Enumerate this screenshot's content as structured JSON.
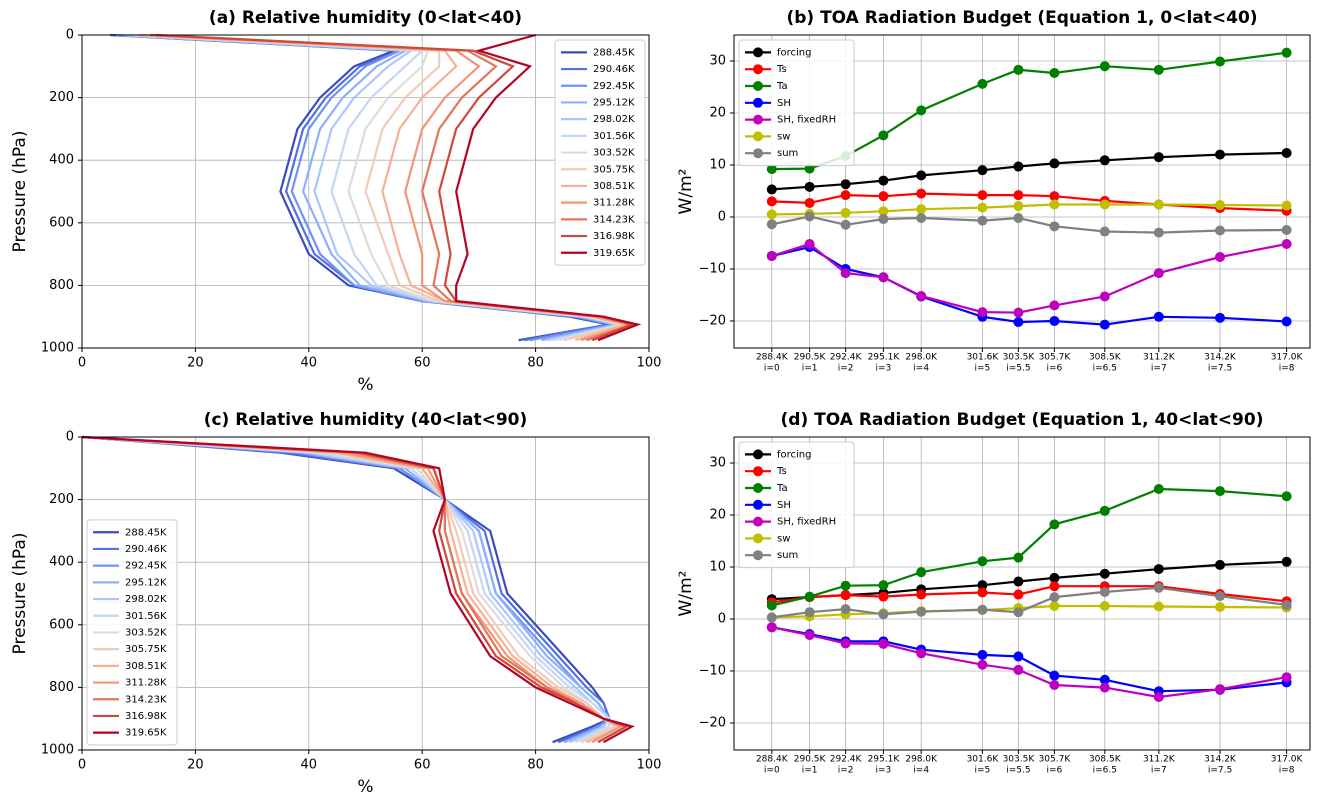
{
  "chart_data": [
    {
      "type": "profile",
      "title": "(a) Relative humidity (0<lat<40)",
      "xlabel": "%",
      "ylabel": "Pressure (hPa)",
      "y": [
        0,
        50,
        100,
        200,
        300,
        500,
        700,
        800,
        850,
        900,
        925,
        975
      ],
      "xlim": [
        0,
        100
      ],
      "xticks": [
        0,
        20,
        40,
        60,
        80,
        100
      ],
      "ylim": [
        1000,
        0
      ],
      "yticks": [
        0,
        200,
        400,
        600,
        800,
        1000
      ],
      "grid": true,
      "legend": "upper right",
      "series": [
        {
          "name": "288.45K",
          "color": "#3b4cc0",
          "values": [
            5,
            55,
            48,
            42,
            38,
            35,
            40,
            47,
            60,
            86,
            93,
            77
          ]
        },
        {
          "name": "290.46K",
          "color": "#5470de",
          "values": [
            5,
            56,
            49,
            43,
            39,
            36,
            41,
            48,
            60,
            87,
            93,
            78
          ]
        },
        {
          "name": "292.45K",
          "color": "#6f92f3",
          "values": [
            6,
            56,
            50,
            44,
            40,
            37,
            42,
            48,
            60,
            87,
            94,
            79
          ]
        },
        {
          "name": "295.12K",
          "color": "#8db0fe",
          "values": [
            6,
            57,
            52,
            46,
            42,
            39,
            44,
            49,
            61,
            88,
            94,
            81
          ]
        },
        {
          "name": "298.02K",
          "color": "#aac7fd",
          "values": [
            7,
            58,
            54,
            48,
            44,
            41,
            45,
            51,
            61,
            88,
            95,
            82
          ]
        },
        {
          "name": "301.56K",
          "color": "#c5d6f2",
          "values": [
            8,
            60,
            57,
            51,
            47,
            44,
            48,
            52,
            62,
            89,
            95,
            83
          ]
        },
        {
          "name": "303.52K",
          "color": "#dddcdc",
          "values": [
            9,
            61,
            60,
            54,
            50,
            47,
            51,
            54,
            62,
            89,
            95,
            84
          ]
        },
        {
          "name": "305.75K",
          "color": "#f2cbb7",
          "values": [
            10,
            63,
            63,
            57,
            53,
            50,
            54,
            56,
            63,
            90,
            96,
            85
          ]
        },
        {
          "name": "308.51K",
          "color": "#f7b093",
          "values": [
            10,
            64,
            66,
            60,
            56,
            53,
            56,
            58,
            64,
            90,
            96,
            87
          ]
        },
        {
          "name": "311.28K",
          "color": "#f39475",
          "values": [
            12,
            66,
            70,
            64,
            60,
            57,
            60,
            60,
            64,
            91,
            97,
            88
          ]
        },
        {
          "name": "314.23K",
          "color": "#e4745b",
          "values": [
            12,
            68,
            73,
            67,
            63,
            60,
            63,
            62,
            65,
            91,
            97,
            89
          ]
        },
        {
          "name": "316.98K",
          "color": "#cc4a3b",
          "values": [
            13,
            69,
            76,
            70,
            66,
            63,
            65,
            64,
            66,
            92,
            97,
            90
          ]
        },
        {
          "name": "319.65K",
          "color": "#b40426",
          "values": [
            80,
            70,
            79,
            73,
            69,
            66,
            68,
            66,
            66,
            92,
            98,
            91
          ]
        }
      ]
    },
    {
      "type": "line",
      "title": "(b) TOA Radiation Budget (Equation 1, 0<lat<40)",
      "ylabel": "W/m²",
      "x": [
        288.4,
        290.5,
        292.5,
        294.6,
        296.7,
        300.1,
        302.1,
        304.1,
        306.9,
        309.9,
        313.3,
        317.0
      ],
      "xlim": [
        286.3,
        318.3
      ],
      "xticks": [
        {
          "value": 288.4,
          "label": "288.4K",
          "index_label": "i=0"
        },
        {
          "value": 290.5,
          "label": "290.5K",
          "index_label": "i=1"
        },
        {
          "value": 292.5,
          "label": "292.4K",
          "index_label": "i=2"
        },
        {
          "value": 294.6,
          "label": "295.1K",
          "index_label": "i=3"
        },
        {
          "value": 296.7,
          "label": "298.0K",
          "index_label": "i=4"
        },
        {
          "value": 300.1,
          "label": "301.6K",
          "index_label": "i=5"
        },
        {
          "value": 302.1,
          "label": "303.5K",
          "index_label": "i=5.5"
        },
        {
          "value": 304.1,
          "label": "305.7K",
          "index_label": "i=6"
        },
        {
          "value": 306.9,
          "label": "308.5K",
          "index_label": "i=6.5"
        },
        {
          "value": 309.9,
          "label": "311.2K",
          "index_label": "i=7"
        },
        {
          "value": 313.3,
          "label": "314.2K",
          "index_label": "i=7.5"
        },
        {
          "value": 317.0,
          "label": "317.0K",
          "index_label": "i=8"
        }
      ],
      "ylim": [
        -25.2,
        35
      ],
      "yticks": [
        {
          "value": -20,
          "label": "−20"
        },
        {
          "value": -10,
          "label": "−10"
        },
        0,
        10,
        20,
        30
      ],
      "grid": true,
      "legend": "upper left",
      "series": [
        {
          "name": "forcing",
          "color": "#000000",
          "values": [
            5.3,
            5.8,
            6.3,
            7.0,
            8.0,
            9.0,
            9.7,
            10.3,
            10.9,
            11.5,
            12.0,
            12.3
          ]
        },
        {
          "name": "Ts",
          "color": "#ff0000",
          "values": [
            3.0,
            2.7,
            4.2,
            4.0,
            4.5,
            4.2,
            4.2,
            4.0,
            3.1,
            2.4,
            1.7,
            1.2
          ]
        },
        {
          "name": "Ta",
          "color": "#008000",
          "values": [
            9.2,
            9.3,
            11.7,
            15.7,
            20.5,
            25.6,
            28.3,
            27.7,
            29.0,
            28.3,
            29.9,
            31.6
          ]
        },
        {
          "name": "SH",
          "color": "#0000ff",
          "values": [
            -7.5,
            -5.8,
            -10.0,
            -11.6,
            -15.3,
            -19.2,
            -20.2,
            -20.0,
            -20.7,
            -19.2,
            -19.4,
            -20.1
          ]
        },
        {
          "name": "SH, fixedRH",
          "color": "#bf00bf",
          "values": [
            -7.5,
            -5.2,
            -10.8,
            -11.6,
            -15.2,
            -18.3,
            -18.4,
            -17.0,
            -15.3,
            -10.8,
            -7.7,
            -5.2
          ]
        },
        {
          "name": "sw",
          "color": "#bfbf00",
          "values": [
            0.5,
            0.6,
            0.8,
            1.1,
            1.5,
            1.8,
            2.1,
            2.4,
            2.4,
            2.4,
            2.3,
            2.2
          ]
        },
        {
          "name": "sum",
          "color": "#808080",
          "values": [
            -1.4,
            0.1,
            -1.5,
            -0.4,
            -0.2,
            -0.7,
            -0.2,
            -1.8,
            -2.8,
            -3.0,
            -2.6,
            -2.5
          ]
        }
      ]
    },
    {
      "type": "profile",
      "title": "(c) Relative humidity (40<lat<90)",
      "xlabel": "%",
      "ylabel": "Pressure (hPa)",
      "y": [
        0,
        50,
        100,
        200,
        300,
        500,
        700,
        800,
        850,
        900,
        925,
        975
      ],
      "xlim": [
        0,
        100
      ],
      "xticks": [
        0,
        20,
        40,
        60,
        80,
        100
      ],
      "ylim": [
        1000,
        0
      ],
      "yticks": [
        0,
        200,
        400,
        600,
        800,
        1000
      ],
      "grid": true,
      "legend": "lower left",
      "series": [
        {
          "name": "288.45K",
          "color": "#3b4cc0",
          "values": [
            0,
            35,
            55,
            64,
            72,
            75,
            85,
            90,
            92,
            93,
            90,
            83
          ]
        },
        {
          "name": "290.46K",
          "color": "#5470de",
          "values": [
            0,
            36,
            56,
            64,
            71,
            74,
            84,
            89,
            92,
            93,
            91,
            84
          ]
        },
        {
          "name": "292.45K",
          "color": "#6f92f3",
          "values": [
            0,
            38,
            56,
            64,
            70,
            73,
            83,
            88,
            91,
            93,
            91,
            85
          ]
        },
        {
          "name": "295.12K",
          "color": "#8db0fe",
          "values": [
            0,
            39,
            57,
            64,
            70,
            73,
            82,
            88,
            91,
            93,
            92,
            85
          ]
        },
        {
          "name": "298.02K",
          "color": "#aac7fd",
          "values": [
            0,
            40,
            58,
            64,
            69,
            72,
            81,
            87,
            90,
            93,
            92,
            86
          ]
        },
        {
          "name": "301.56K",
          "color": "#c5d6f2",
          "values": [
            0,
            41,
            58,
            64,
            68,
            71,
            80,
            86,
            90,
            93,
            93,
            87
          ]
        },
        {
          "name": "303.52K",
          "color": "#dddcdc",
          "values": [
            0,
            43,
            59,
            64,
            67,
            70,
            79,
            85,
            89,
            92,
            94,
            88
          ]
        },
        {
          "name": "305.75K",
          "color": "#f2cbb7",
          "values": [
            0,
            44,
            60,
            64,
            66,
            69,
            77,
            84,
            89,
            92,
            94,
            88
          ]
        },
        {
          "name": "308.51K",
          "color": "#f7b093",
          "values": [
            0,
            45,
            60,
            64,
            65,
            68,
            76,
            83,
            88,
            92,
            95,
            89
          ]
        },
        {
          "name": "311.28K",
          "color": "#f39475",
          "values": [
            0,
            46,
            61,
            64,
            64,
            67,
            75,
            82,
            88,
            92,
            95,
            90
          ]
        },
        {
          "name": "314.23K",
          "color": "#e4745b",
          "values": [
            0,
            48,
            62,
            64,
            64,
            67,
            74,
            82,
            87,
            92,
            96,
            91
          ]
        },
        {
          "name": "316.98K",
          "color": "#cc4a3b",
          "values": [
            0,
            49,
            62,
            64,
            63,
            66,
            73,
            81,
            87,
            92,
            96,
            91
          ]
        },
        {
          "name": "319.65K",
          "color": "#b40426",
          "values": [
            0,
            50,
            63,
            64,
            62,
            65,
            72,
            80,
            86,
            92,
            97,
            92
          ]
        }
      ]
    },
    {
      "type": "line",
      "title": "(d) TOA Radiation Budget (Equation 1, 40<lat<90)",
      "ylabel": "W/m²",
      "x": [
        288.4,
        290.5,
        292.5,
        294.6,
        296.7,
        300.1,
        302.1,
        304.1,
        306.9,
        309.9,
        313.3,
        317.0
      ],
      "xlim": [
        286.3,
        318.3
      ],
      "xticks": [
        {
          "value": 288.4,
          "label": "288.4K",
          "index_label": "i=0"
        },
        {
          "value": 290.5,
          "label": "290.5K",
          "index_label": "i=1"
        },
        {
          "value": 292.5,
          "label": "292.4K",
          "index_label": "i=2"
        },
        {
          "value": 294.6,
          "label": "295.1K",
          "index_label": "i=3"
        },
        {
          "value": 296.7,
          "label": "298.0K",
          "index_label": "i=4"
        },
        {
          "value": 300.1,
          "label": "301.6K",
          "index_label": "i=5"
        },
        {
          "value": 302.1,
          "label": "303.5K",
          "index_label": "i=5.5"
        },
        {
          "value": 304.1,
          "label": "305.7K",
          "index_label": "i=6"
        },
        {
          "value": 306.9,
          "label": "308.5K",
          "index_label": "i=6.5"
        },
        {
          "value": 309.9,
          "label": "311.2K",
          "index_label": "i=7"
        },
        {
          "value": 313.3,
          "label": "314.2K",
          "index_label": "i=7.5"
        },
        {
          "value": 317.0,
          "label": "317.0K",
          "index_label": "i=8"
        }
      ],
      "ylim": [
        -25.2,
        35
      ],
      "yticks": [
        {
          "value": -20,
          "label": "−20"
        },
        {
          "value": -10,
          "label": "−10"
        },
        0,
        10,
        20,
        30
      ],
      "grid": true,
      "legend": "upper left",
      "series": [
        {
          "name": "forcing",
          "color": "#000000",
          "values": [
            3.8,
            4.2,
            4.6,
            5.0,
            5.7,
            6.5,
            7.2,
            7.9,
            8.7,
            9.6,
            10.4,
            11.0
          ]
        },
        {
          "name": "Ts",
          "color": "#ff0000",
          "values": [
            3.2,
            4.2,
            4.6,
            4.3,
            4.7,
            5.1,
            4.7,
            6.3,
            6.3,
            6.3,
            4.8,
            3.4
          ]
        },
        {
          "name": "Ta",
          "color": "#008000",
          "values": [
            2.6,
            4.3,
            6.4,
            6.5,
            9.0,
            11.1,
            11.8,
            18.2,
            20.8,
            25.0,
            24.6,
            23.6
          ]
        },
        {
          "name": "SH",
          "color": "#0000ff",
          "values": [
            -1.6,
            -2.9,
            -4.3,
            -4.3,
            -5.9,
            -6.9,
            -7.2,
            -10.9,
            -11.7,
            -13.9,
            -13.6,
            -12.2
          ]
        },
        {
          "name": "SH, fixedRH",
          "color": "#bf00bf",
          "values": [
            -1.6,
            -3.1,
            -4.7,
            -4.8,
            -6.6,
            -8.8,
            -9.8,
            -12.7,
            -13.2,
            -15.0,
            -13.5,
            -11.2
          ]
        },
        {
          "name": "sw",
          "color": "#bfbf00",
          "values": [
            0.3,
            0.5,
            0.9,
            1.1,
            1.5,
            1.7,
            2.1,
            2.5,
            2.5,
            2.4,
            2.3,
            2.2
          ]
        },
        {
          "name": "sum",
          "color": "#808080",
          "values": [
            0.3,
            1.3,
            1.9,
            0.9,
            1.4,
            1.8,
            1.3,
            4.2,
            5.2,
            6.0,
            4.4,
            2.7
          ]
        }
      ]
    }
  ]
}
